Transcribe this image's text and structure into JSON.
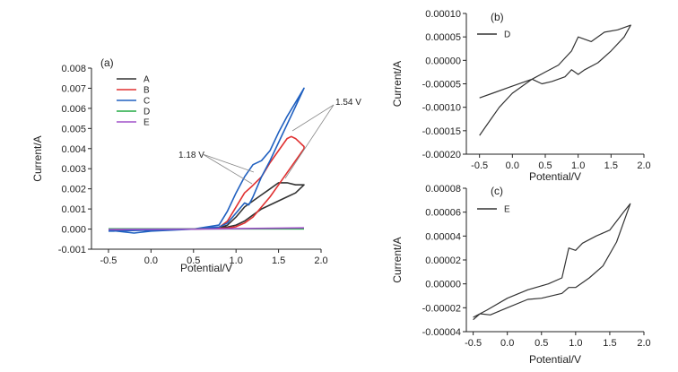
{
  "chart_data": [
    {
      "panel": "(a)",
      "type": "line",
      "xlabel": "Potential/V",
      "ylabel": "Current/A",
      "xlim": [
        -0.7,
        2.0
      ],
      "ylim": [
        -0.001,
        0.008
      ],
      "xticks": [
        -0.5,
        0.0,
        0.5,
        1.0,
        1.5,
        2.0
      ],
      "xtick_labels": [
        "-0.5",
        "0.0",
        "0.5",
        "1.0",
        "1.5",
        "2.0"
      ],
      "yticks": [
        -0.001,
        0.0,
        0.001,
        0.002,
        0.003,
        0.004,
        0.005,
        0.006,
        0.007,
        0.008
      ],
      "ytick_labels": [
        "-0.001",
        "0.000",
        "0.001",
        "0.002",
        "0.003",
        "0.004",
        "0.005",
        "0.006",
        "0.007",
        "0.008"
      ],
      "legend_position": "top-left",
      "annotations": [
        {
          "text": "1.18 V",
          "x": 1.18,
          "y": 0.0017
        },
        {
          "text": "1.54 V",
          "x": 1.54,
          "y": 0.0045
        }
      ],
      "series": [
        {
          "name": "A",
          "color": "#333333",
          "x": [
            -0.5,
            0.0,
            0.5,
            0.8,
            0.9,
            1.0,
            1.1,
            1.2,
            1.3,
            1.4,
            1.5,
            1.6,
            1.7,
            1.8,
            1.8,
            1.7,
            1.6,
            1.5,
            1.4,
            1.3,
            1.2,
            1.1,
            1.0,
            0.9,
            0.5,
            0.0,
            -0.5
          ],
          "y": [
            -5e-05,
            -2e-05,
            0.0,
            5e-05,
            0.0002,
            0.0006,
            0.0011,
            0.0014,
            0.0017,
            0.002,
            0.0023,
            0.0023,
            0.0022,
            0.0022,
            0.0022,
            0.0018,
            0.0016,
            0.0014,
            0.0012,
            0.001,
            0.0007,
            0.0004,
            0.0002,
            0.0001,
            0.0,
            -3e-05,
            -5e-05
          ]
        },
        {
          "name": "B",
          "color": "#e03030",
          "x": [
            -0.5,
            0.0,
            0.5,
            0.8,
            0.9,
            1.0,
            1.1,
            1.18,
            1.3,
            1.4,
            1.5,
            1.6,
            1.65,
            1.7,
            1.8,
            1.8,
            1.7,
            1.6,
            1.5,
            1.4,
            1.3,
            1.2,
            1.1,
            1.0,
            0.9,
            0.5,
            0.0,
            -0.5
          ],
          "y": [
            -5e-05,
            -2e-05,
            0.0,
            8e-05,
            0.0004,
            0.0011,
            0.0018,
            0.0021,
            0.0026,
            0.0033,
            0.0039,
            0.0045,
            0.0046,
            0.0045,
            0.0041,
            0.004,
            0.0034,
            0.0028,
            0.0022,
            0.0016,
            0.0011,
            0.0006,
            0.0003,
            0.00012,
            5e-05,
            0.0,
            -3e-05,
            -5e-05
          ]
        },
        {
          "name": "C",
          "color": "#2060c0",
          "x": [
            -0.5,
            -0.2,
            0.0,
            0.5,
            0.8,
            0.9,
            1.0,
            1.1,
            1.2,
            1.3,
            1.4,
            1.5,
            1.6,
            1.7,
            1.8,
            1.7,
            1.6,
            1.5,
            1.4,
            1.3,
            1.2,
            1.15,
            1.1,
            1.0,
            0.9,
            0.8,
            0.5,
            0.0,
            -0.5
          ],
          "y": [
            -5e-05,
            -0.0002,
            -0.0001,
            0.0,
            0.0002,
            0.0009,
            0.0018,
            0.0026,
            0.0032,
            0.0034,
            0.0039,
            0.0048,
            0.0056,
            0.0063,
            0.007,
            0.0061,
            0.0052,
            0.0043,
            0.0034,
            0.0026,
            0.0016,
            0.0012,
            0.0013,
            0.0008,
            0.0003,
            0.0001,
            0.0,
            -5e-05,
            -0.0001
          ]
        },
        {
          "name": "D",
          "color": "#22aa44",
          "x": [
            -0.5,
            1.8
          ],
          "y": [
            1e-05,
            1e-05
          ]
        },
        {
          "name": "E",
          "color": "#a050c8",
          "x": [
            -0.5,
            0.5,
            1.0,
            1.8
          ],
          "y": [
            -2e-05,
            0.0,
            2e-05,
            6e-05
          ]
        }
      ]
    },
    {
      "panel": "(b)",
      "type": "line",
      "xlabel": "Potential/V",
      "ylabel": "Current/A",
      "xlim": [
        -0.7,
        2.0
      ],
      "ylim": [
        -0.0002,
        0.0001
      ],
      "xticks": [
        -0.5,
        0.0,
        0.5,
        1.0,
        1.5,
        2.0
      ],
      "xtick_labels": [
        "-0.5",
        "0.0",
        "0.5",
        "1.0",
        "1.5",
        "2.0"
      ],
      "yticks": [
        -0.0002,
        -0.00015,
        -0.0001,
        -5e-05,
        0.0,
        5e-05,
        0.0001
      ],
      "ytick_labels": [
        "-0.00020",
        "-0.00015",
        "-0.00010",
        "-0.00005",
        "0.00000",
        "0.00005",
        "0.00010"
      ],
      "legend_position": "top-left",
      "series": [
        {
          "name": "D",
          "color": "#333333",
          "x": [
            -0.5,
            -0.3,
            0.0,
            0.3,
            0.5,
            0.7,
            0.9,
            1.0,
            1.1,
            1.2,
            1.4,
            1.6,
            1.8,
            1.7,
            1.5,
            1.3,
            1.1,
            1.0,
            0.9,
            0.8,
            0.6,
            0.45,
            0.3,
            0.1,
            0.0,
            -0.2,
            -0.4,
            -0.5
          ],
          "y": [
            -8e-05,
            -7e-05,
            -5.5e-05,
            -4e-05,
            -2.5e-05,
            -1e-05,
            2e-05,
            5e-05,
            4.5e-05,
            4e-05,
            6e-05,
            6.5e-05,
            7.5e-05,
            5e-05,
            2e-05,
            -5e-06,
            -2e-05,
            -3e-05,
            -2e-05,
            -3.5e-05,
            -4.5e-05,
            -5e-05,
            -4e-05,
            -6e-05,
            -7e-05,
            -0.0001,
            -0.00014,
            -0.00016
          ]
        }
      ]
    },
    {
      "panel": "(c)",
      "type": "line",
      "xlabel": "Potential/V",
      "ylabel": "Current/A",
      "xlim": [
        -0.6,
        2.0
      ],
      "ylim": [
        -4e-05,
        8e-05
      ],
      "xticks": [
        -0.5,
        0.0,
        0.5,
        1.0,
        1.5,
        2.0
      ],
      "xtick_labels": [
        "-0.5",
        "0.0",
        "0.5",
        "1.0",
        "1.5",
        "2.0"
      ],
      "yticks": [
        -4e-05,
        -2e-05,
        0.0,
        2e-05,
        4e-05,
        6e-05,
        8e-05
      ],
      "ytick_labels": [
        "-0.00004",
        "-0.00002",
        "0.00000",
        "0.00002",
        "0.00004",
        "0.00006",
        "0.00008"
      ],
      "legend_position": "top-left",
      "series": [
        {
          "name": "E",
          "color": "#333333",
          "x": [
            -0.5,
            -0.3,
            0.0,
            0.3,
            0.6,
            0.8,
            0.9,
            1.0,
            1.1,
            1.3,
            1.5,
            1.7,
            1.8,
            1.6,
            1.4,
            1.2,
            1.0,
            0.9,
            0.8,
            0.5,
            0.3,
            0.0,
            -0.25,
            -0.4,
            -0.5
          ],
          "y": [
            -2.8e-05,
            -2.2e-05,
            -1.2e-05,
            -5e-06,
            0.0,
            5e-06,
            3e-05,
            2.8e-05,
            3.4e-05,
            4e-05,
            4.5e-05,
            6e-05,
            6.7e-05,
            3.5e-05,
            1.5e-05,
            5e-06,
            -3e-06,
            -3e-06,
            -8e-06,
            -1.2e-05,
            -1.3e-05,
            -2e-05,
            -2.6e-05,
            -2.5e-05,
            -3e-05
          ]
        }
      ]
    }
  ]
}
